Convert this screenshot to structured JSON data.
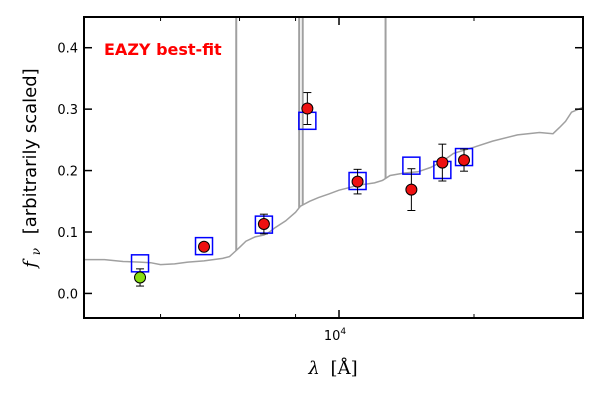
{
  "chart_data": {
    "type": "scatter",
    "title": "",
    "annotation": "EAZY best-fit",
    "annotation_color": "#ff0000",
    "xlabel_symbol": "λ",
    "xlabel_unit": "[Å]",
    "ylabel_symbol": "f",
    "ylabel_subscript": "ν",
    "ylabel_text": "[arbitrarily scaled]",
    "x_scale": "log",
    "xlim": [
      2700,
      35000
    ],
    "ylim": [
      -0.04,
      0.45
    ],
    "y_ticks": [
      0.0,
      0.1,
      0.2,
      0.3,
      0.4
    ],
    "y_tick_labels": [
      "0.0",
      "0.1",
      "0.2",
      "0.3",
      "0.4"
    ],
    "x_major_ticks": [
      10000
    ],
    "x_major_tick_label_base": "10",
    "x_major_tick_label_exp": "4",
    "x_minor_ticks": [
      4000,
      6000,
      8000,
      20000
    ],
    "grid": false,
    "colors": {
      "model": "#a0a0a0",
      "model_photometry_edge": "#0000ff",
      "observed_fill": "#ee1111",
      "upper_fill": "#88dd11",
      "errorbar": "#000000"
    },
    "model_spectrum": {
      "x": [
        2700,
        3000,
        3300,
        3600,
        3800,
        4000,
        4300,
        4600,
        5000,
        5500,
        5700,
        5800,
        6000,
        6200,
        6500,
        6800,
        7000,
        7200,
        7600,
        7800,
        8000,
        8200,
        8600,
        9000,
        9500,
        10000,
        10500,
        11000,
        12000,
        12500,
        13000,
        14000,
        15000,
        16000,
        17000,
        18000,
        20000,
        22000,
        25000,
        28000,
        30000,
        31000,
        32000,
        33000,
        35000
      ],
      "y": [
        0.055,
        0.055,
        0.052,
        0.051,
        0.05,
        0.047,
        0.048,
        0.051,
        0.053,
        0.057,
        0.06,
        0.065,
        0.075,
        0.085,
        0.092,
        0.095,
        0.1,
        0.107,
        0.118,
        0.125,
        0.132,
        0.142,
        0.15,
        0.156,
        0.162,
        0.168,
        0.172,
        0.176,
        0.18,
        0.184,
        0.192,
        0.196,
        0.198,
        0.205,
        0.215,
        0.228,
        0.238,
        0.248,
        0.258,
        0.262,
        0.26,
        0.27,
        0.28,
        0.295,
        0.303
      ]
    },
    "emission_lines": [
      {
        "x": 5900,
        "y": 0.45
      },
      {
        "x": 8150,
        "y": 0.45
      },
      {
        "x": 8300,
        "y": 0.45
      },
      {
        "x": 12700,
        "y": 0.45
      }
    ],
    "model_photometry": {
      "x": [
        3600,
        5000,
        6800,
        8500,
        11000,
        14500,
        17000,
        19000
      ],
      "y": [
        0.049,
        0.077,
        0.112,
        0.281,
        0.183,
        0.208,
        0.201,
        0.222
      ]
    },
    "observed_photometry": [
      {
        "x": 3600,
        "y": 0.026,
        "err": 0.014,
        "kind": "upper"
      },
      {
        "x": 5000,
        "y": 0.076,
        "err": 0.005,
        "kind": "detection"
      },
      {
        "x": 6800,
        "y": 0.113,
        "err": 0.016,
        "kind": "detection"
      },
      {
        "x": 8500,
        "y": 0.301,
        "err": 0.026,
        "kind": "detection"
      },
      {
        "x": 11000,
        "y": 0.182,
        "err": 0.02,
        "kind": "detection"
      },
      {
        "x": 14500,
        "y": 0.169,
        "err": 0.034,
        "kind": "detection"
      },
      {
        "x": 17000,
        "y": 0.213,
        "err": 0.03,
        "kind": "detection"
      },
      {
        "x": 19000,
        "y": 0.217,
        "err": 0.018,
        "kind": "detection"
      }
    ]
  }
}
